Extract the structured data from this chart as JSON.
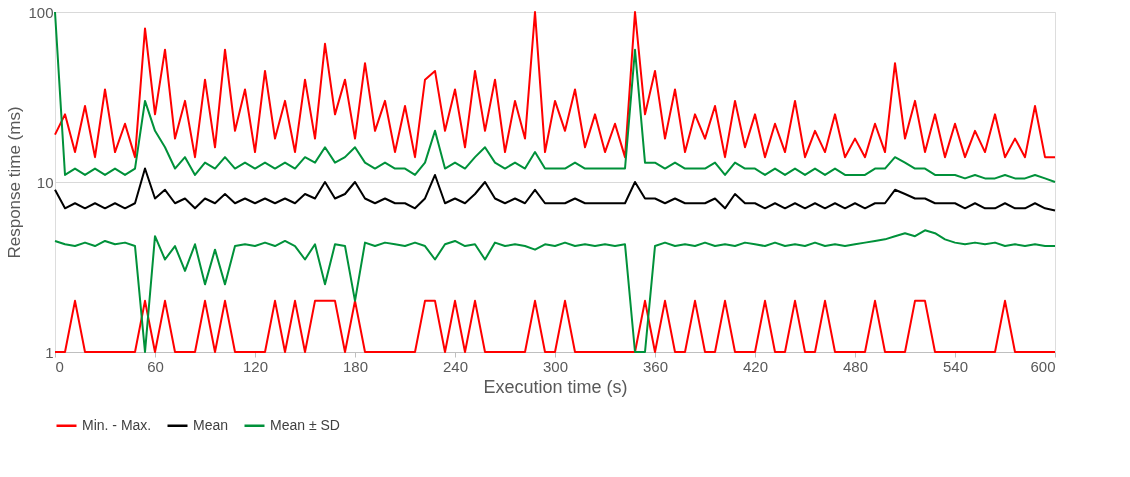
{
  "chart_data": {
    "type": "line",
    "xlabel": "Execution time (s)",
    "ylabel": "Response time (ms)",
    "log": "y",
    "grid": "y",
    "legend": "bottom",
    "marker": "none",
    "line_style": "solid",
    "xlim": [
      0,
      600
    ],
    "xticks": [
      0,
      60,
      120,
      180,
      240,
      300,
      360,
      420,
      480,
      540,
      600
    ],
    "ylim": [
      1,
      100
    ],
    "yticks": [
      1,
      10,
      100
    ],
    "x": [
      0,
      6,
      12,
      18,
      24,
      30,
      36,
      42,
      48,
      54,
      60,
      66,
      72,
      78,
      84,
      90,
      96,
      102,
      108,
      114,
      120,
      126,
      132,
      138,
      144,
      150,
      156,
      162,
      168,
      174,
      180,
      186,
      192,
      198,
      204,
      210,
      216,
      222,
      228,
      234,
      240,
      246,
      252,
      258,
      264,
      270,
      276,
      282,
      288,
      294,
      300,
      306,
      312,
      318,
      324,
      330,
      336,
      342,
      348,
      354,
      360,
      366,
      372,
      378,
      384,
      390,
      396,
      402,
      408,
      414,
      420,
      426,
      432,
      438,
      444,
      450,
      456,
      462,
      468,
      474,
      480,
      486,
      492,
      498,
      504,
      510,
      516,
      522,
      528,
      534,
      540,
      546,
      552,
      558,
      564,
      570,
      576,
      582,
      588,
      594,
      600
    ],
    "series": [
      {
        "name": "Min. - Max.",
        "color": "#ff0000",
        "values": [
          19,
          25,
          15,
          28,
          14,
          35,
          15,
          22,
          14,
          80,
          25,
          60,
          18,
          30,
          14,
          40,
          16,
          60,
          20,
          35,
          15,
          45,
          18,
          30,
          15,
          40,
          18,
          65,
          25,
          40,
          18,
          50,
          20,
          30,
          15,
          28,
          14,
          40,
          45,
          20,
          35,
          16,
          45,
          20,
          40,
          15,
          30,
          18,
          100,
          15,
          30,
          20,
          35,
          16,
          25,
          15,
          22,
          14,
          100,
          25,
          45,
          18,
          35,
          15,
          25,
          18,
          28,
          14,
          30,
          16,
          25,
          14,
          22,
          15,
          30,
          14,
          20,
          15,
          25,
          14,
          18,
          14,
          22,
          15,
          50,
          18,
          30,
          15,
          25,
          14,
          22,
          14,
          20,
          15,
          25,
          14,
          18,
          14,
          28,
          14,
          14
        ]
      },
      {
        "color": "#ff0000",
        "values": [
          1,
          1,
          2,
          1,
          1,
          1,
          1,
          1,
          1,
          2,
          1,
          2,
          1,
          1,
          1,
          2,
          1,
          2,
          1,
          1,
          1,
          1,
          2,
          1,
          2,
          1,
          2,
          2,
          2,
          1,
          2,
          1,
          1,
          1,
          1,
          1,
          1,
          2,
          2,
          1,
          2,
          1,
          2,
          1,
          1,
          1,
          1,
          1,
          2,
          1,
          1,
          2,
          1,
          1,
          1,
          1,
          1,
          1,
          1,
          2,
          1,
          2,
          1,
          1,
          2,
          1,
          1,
          2,
          1,
          1,
          1,
          2,
          1,
          1,
          2,
          1,
          1,
          2,
          1,
          1,
          1,
          1,
          2,
          1,
          1,
          1,
          2,
          2,
          1,
          1,
          1,
          1,
          1,
          1,
          1,
          2,
          1,
          1,
          1,
          1,
          1
        ]
      },
      {
        "name": "Mean",
        "color": "#000000",
        "values": [
          9,
          7,
          7.5,
          7,
          7.5,
          7,
          7.5,
          7,
          7.5,
          12,
          8,
          9,
          7.5,
          8,
          7,
          8,
          7.5,
          8.5,
          7.5,
          8,
          7.5,
          8,
          7.5,
          8,
          7.5,
          8.5,
          8,
          10,
          8,
          8.5,
          10,
          8,
          7.5,
          8,
          7.5,
          7.5,
          7,
          8,
          11,
          7.5,
          8,
          7.5,
          8.5,
          10,
          8,
          7.5,
          8,
          7.5,
          9,
          7.5,
          7.5,
          7.5,
          8,
          7.5,
          7.5,
          7.5,
          7.5,
          7.5,
          10,
          8,
          8,
          7.5,
          8,
          7.5,
          7.5,
          7.5,
          8,
          7,
          8.5,
          7.5,
          7.5,
          7,
          7.5,
          7,
          7.5,
          7,
          7.5,
          7,
          7.5,
          7,
          7.5,
          7,
          7.5,
          7.5,
          9,
          8.5,
          8,
          8,
          7.5,
          7.5,
          7.5,
          7,
          7.5,
          7,
          7,
          7.5,
          7,
          7,
          7.5,
          7,
          6.8
        ]
      },
      {
        "name": "Mean ± SD",
        "color": "#00913a",
        "values": [
          100,
          11,
          12,
          11,
          12,
          11,
          12,
          11,
          12,
          30,
          20,
          16,
          12,
          14,
          11,
          13,
          12,
          14,
          12,
          13,
          12,
          13,
          12,
          13,
          12,
          14,
          13,
          16,
          13,
          14,
          16,
          13,
          12,
          13,
          12,
          12,
          11,
          13,
          20,
          12,
          13,
          12,
          14,
          16,
          13,
          12,
          13,
          12,
          15,
          12,
          12,
          12,
          13,
          12,
          12,
          12,
          12,
          12,
          60,
          13,
          13,
          12,
          13,
          12,
          12,
          12,
          13,
          11,
          13,
          12,
          12,
          11,
          12,
          11,
          12,
          11,
          12,
          11,
          12,
          11,
          11,
          11,
          12,
          12,
          14,
          13,
          12,
          12,
          11,
          11,
          11,
          10.5,
          11,
          10.5,
          10.5,
          11,
          10.5,
          10.5,
          11,
          10.5,
          10
        ]
      },
      {
        "color": "#00913a",
        "values": [
          4.5,
          4.3,
          4.2,
          4.4,
          4.2,
          4.5,
          4.3,
          4.4,
          4.2,
          1,
          4.8,
          3.5,
          4.2,
          3,
          4.3,
          2.5,
          4,
          2.5,
          4.2,
          4.3,
          4.2,
          4.4,
          4.2,
          4.5,
          4.2,
          3.5,
          4.3,
          2.5,
          4.3,
          4.2,
          2,
          4.4,
          4.2,
          4.4,
          4.3,
          4.2,
          4.4,
          4.2,
          3.5,
          4.3,
          4.5,
          4.2,
          4.3,
          3.5,
          4.4,
          4.2,
          4.3,
          4.2,
          4,
          4.3,
          4.2,
          4.4,
          4.2,
          4.3,
          4.2,
          4.3,
          4.2,
          4.3,
          1,
          1,
          4.2,
          4.4,
          4.2,
          4.3,
          4.2,
          4.4,
          4.2,
          4.3,
          4.2,
          4.4,
          4.3,
          4.2,
          4.4,
          4.2,
          4.3,
          4.2,
          4.4,
          4.2,
          4.3,
          4.2,
          4.3,
          4.4,
          4.5,
          4.6,
          4.8,
          5,
          4.8,
          5.2,
          5,
          4.6,
          4.4,
          4.3,
          4.4,
          4.3,
          4.4,
          4.2,
          4.3,
          4.2,
          4.3,
          4.2,
          4.2
        ]
      }
    ]
  }
}
